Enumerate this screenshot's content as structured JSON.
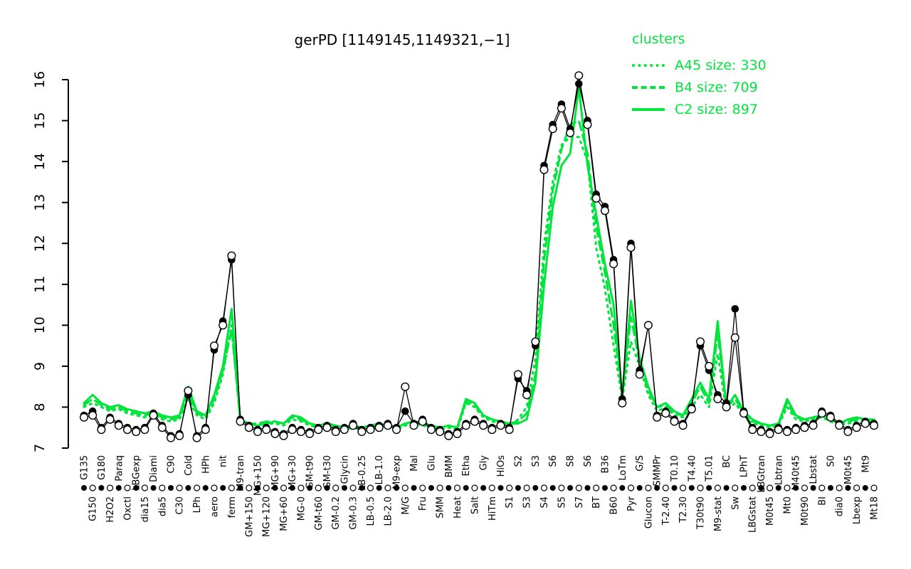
{
  "title": "gerPD [1149145,1149321,−1]",
  "legend": {
    "title": "clusters",
    "entries": [
      {
        "label": "A45 size: 330",
        "style": "dotted"
      },
      {
        "label": "B4 size: 709",
        "style": "dashed"
      },
      {
        "label": "C2 size: 897",
        "style": "solid"
      }
    ]
  },
  "colors": {
    "cluster_green": "#00e53c",
    "profile_black": "#000000",
    "background": "#ffffff"
  },
  "chart_data": {
    "type": "line",
    "title": "gerPD [1149145,1149321,−1]",
    "xlabel": "",
    "ylabel": "",
    "ylim": [
      7,
      16
    ],
    "yticks": [
      7,
      8,
      9,
      10,
      11,
      12,
      13,
      14,
      15,
      16
    ],
    "grid": false,
    "legend_position": "top-right",
    "categories": [
      "G135",
      "G150",
      "G180",
      "H2O2",
      "Paraq",
      "Oxctl",
      "LBGexp",
      "dia15",
      "Diami",
      "dia5",
      "C90",
      "C30",
      "Cold",
      "LPh",
      "HPh",
      "aero",
      "nit",
      "ferm",
      "M9-tran",
      "GM+150",
      "MG+150",
      "MG+120",
      "MG+90",
      "MG+60",
      "MG+30",
      "MG-0",
      "GM-t90",
      "GM-t60",
      "GM-t30",
      "GM-0.2",
      "Glycin",
      "GM-0.3",
      "LB-0.25",
      "LB-0.5",
      "LB-1.0",
      "LB-2.0",
      "M9-exp",
      "M/G",
      "Mal",
      "Fru",
      "Glu",
      "SMM",
      "BMM",
      "Heat",
      "Etha",
      "Salt",
      "Gly",
      "HiTm",
      "HiOs",
      "S1",
      "S2",
      "S3",
      "S3",
      "S4",
      "S6",
      "S5",
      "S8",
      "S7",
      "S6",
      "BT",
      "B36",
      "B60",
      "LoTm",
      "Pyr",
      "G/S",
      "Glucon",
      "SMMPr",
      "T-2.40",
      "T0.10",
      "T2.30",
      "T4.40",
      "T30t90",
      "T5.01",
      "M9-stat",
      "BC",
      "Sw",
      "LPhT",
      "LBGstat",
      "LBGtran",
      "M0t45",
      "Lbtran",
      "Mt0",
      "M40t45",
      "M0t90",
      "Lbstat",
      "BI",
      "S0",
      "dia0",
      "M0t45",
      "Lbexp",
      "Mt9",
      "Mt18"
    ],
    "series": [
      {
        "name": "A45 size: 330",
        "color": "#00e53c",
        "dash": "dotted",
        "values": [
          8.0,
          8.1,
          8.0,
          7.9,
          7.95,
          7.85,
          7.8,
          7.75,
          7.8,
          7.7,
          7.65,
          7.7,
          8.2,
          7.8,
          7.7,
          8.1,
          8.8,
          10.0,
          7.65,
          7.6,
          7.55,
          7.6,
          7.6,
          7.55,
          7.7,
          7.65,
          7.55,
          7.5,
          7.55,
          7.5,
          7.45,
          7.5,
          7.45,
          7.5,
          7.55,
          7.5,
          7.45,
          7.55,
          7.6,
          7.55,
          7.5,
          7.45,
          7.5,
          7.45,
          8.1,
          8.0,
          7.75,
          7.65,
          7.6,
          7.55,
          7.7,
          8.0,
          9.2,
          12.0,
          13.5,
          14.4,
          14.6,
          14.6,
          14.0,
          11.9,
          10.9,
          9.5,
          8.2,
          9.6,
          9.0,
          8.3,
          7.9,
          8.0,
          7.8,
          7.75,
          8.0,
          8.3,
          8.0,
          9.3,
          7.9,
          8.1,
          7.8,
          7.6,
          7.55,
          7.5,
          7.55,
          8.0,
          7.7,
          7.65,
          7.7,
          7.75,
          7.65,
          7.55,
          7.6,
          7.65,
          7.6,
          7.6
        ]
      },
      {
        "name": "B4 size: 709",
        "color": "#00e53c",
        "dash": "dashed",
        "values": [
          8.05,
          8.2,
          8.05,
          7.95,
          8.0,
          7.9,
          7.85,
          7.8,
          7.85,
          7.75,
          7.7,
          7.75,
          8.35,
          7.85,
          7.75,
          8.2,
          8.9,
          9.9,
          7.7,
          7.6,
          7.6,
          7.65,
          7.65,
          7.6,
          7.75,
          7.7,
          7.6,
          7.55,
          7.6,
          7.55,
          7.5,
          7.55,
          7.5,
          7.55,
          7.6,
          7.55,
          7.5,
          7.6,
          7.65,
          7.6,
          7.55,
          7.5,
          7.55,
          7.5,
          8.15,
          8.05,
          7.8,
          7.7,
          7.65,
          7.6,
          7.65,
          7.85,
          8.8,
          11.6,
          13.3,
          14.3,
          14.9,
          15.0,
          14.2,
          12.4,
          11.3,
          10.0,
          8.3,
          10.2,
          9.1,
          8.4,
          8.0,
          8.05,
          7.85,
          7.8,
          8.1,
          8.5,
          8.1,
          9.8,
          8.0,
          8.2,
          7.85,
          7.65,
          7.6,
          7.55,
          7.6,
          8.1,
          7.75,
          7.7,
          7.75,
          7.8,
          7.7,
          7.6,
          7.65,
          7.7,
          7.65,
          7.65
        ]
      },
      {
        "name": "C2 size: 897",
        "color": "#00e53c",
        "dash": "solid",
        "values": [
          8.1,
          8.3,
          8.1,
          8.0,
          8.05,
          7.95,
          7.9,
          7.85,
          7.9,
          7.8,
          7.75,
          7.8,
          8.5,
          7.9,
          7.8,
          8.3,
          9.0,
          10.4,
          7.7,
          7.6,
          7.55,
          7.6,
          7.65,
          7.6,
          7.8,
          7.75,
          7.6,
          7.55,
          7.6,
          7.55,
          7.5,
          7.55,
          7.5,
          7.55,
          7.6,
          7.55,
          7.5,
          7.6,
          7.65,
          7.6,
          7.55,
          7.5,
          7.55,
          7.5,
          8.2,
          8.1,
          7.8,
          7.7,
          7.65,
          7.6,
          7.6,
          7.7,
          8.6,
          11.0,
          12.9,
          13.9,
          14.2,
          15.8,
          13.9,
          12.7,
          11.5,
          10.5,
          8.3,
          10.6,
          9.2,
          8.5,
          8.0,
          8.1,
          7.9,
          7.8,
          8.2,
          8.6,
          8.2,
          10.1,
          8.0,
          8.3,
          7.9,
          7.7,
          7.6,
          7.55,
          7.6,
          8.2,
          7.8,
          7.7,
          7.75,
          7.8,
          7.7,
          7.6,
          7.7,
          7.75,
          7.7,
          7.7
        ]
      },
      {
        "name": "gene 1149145",
        "color": "#000000",
        "dash": "solid",
        "marker": "filled",
        "values": [
          7.8,
          7.9,
          7.5,
          7.75,
          7.6,
          7.5,
          7.45,
          7.5,
          7.85,
          7.55,
          7.3,
          7.35,
          8.3,
          7.3,
          7.5,
          9.4,
          10.1,
          11.6,
          7.7,
          7.55,
          7.45,
          7.5,
          7.4,
          7.35,
          7.5,
          7.45,
          7.4,
          7.5,
          7.55,
          7.45,
          7.5,
          7.6,
          7.45,
          7.5,
          7.55,
          7.6,
          7.5,
          7.9,
          7.6,
          7.7,
          7.5,
          7.45,
          7.35,
          7.4,
          7.6,
          7.7,
          7.6,
          7.5,
          7.6,
          7.5,
          8.7,
          8.4,
          9.5,
          13.9,
          14.9,
          15.4,
          14.8,
          15.9,
          15.0,
          13.2,
          12.9,
          11.6,
          8.2,
          12.0,
          8.9,
          10.0,
          7.8,
          7.9,
          7.7,
          7.6,
          8.0,
          9.5,
          8.9,
          8.3,
          8.1,
          10.4,
          7.9,
          7.5,
          7.45,
          7.4,
          7.5,
          7.45,
          7.5,
          7.55,
          7.6,
          7.9,
          7.8,
          7.6,
          7.45,
          7.55,
          7.65,
          7.6
        ]
      },
      {
        "name": "gene 1149321",
        "color": "#000000",
        "dash": "solid",
        "marker": "open",
        "values": [
          7.75,
          7.8,
          7.45,
          7.7,
          7.55,
          7.45,
          7.4,
          7.45,
          7.8,
          7.5,
          7.25,
          7.3,
          8.4,
          7.25,
          7.45,
          9.5,
          10.0,
          11.7,
          7.65,
          7.5,
          7.4,
          7.45,
          7.35,
          7.3,
          7.45,
          7.4,
          7.35,
          7.45,
          7.5,
          7.4,
          7.45,
          7.55,
          7.4,
          7.45,
          7.5,
          7.55,
          7.45,
          8.5,
          7.55,
          7.65,
          7.45,
          7.4,
          7.3,
          7.35,
          7.55,
          7.65,
          7.55,
          7.45,
          7.55,
          7.45,
          8.8,
          8.3,
          9.6,
          13.8,
          14.8,
          15.3,
          14.7,
          16.1,
          14.9,
          13.1,
          12.8,
          11.5,
          8.1,
          11.9,
          8.8,
          10.0,
          7.75,
          7.85,
          7.65,
          7.55,
          7.95,
          9.6,
          9.0,
          8.2,
          8.0,
          9.7,
          7.85,
          7.45,
          7.4,
          7.35,
          7.45,
          7.4,
          7.45,
          7.5,
          7.55,
          7.85,
          7.75,
          7.55,
          7.4,
          7.5,
          7.6,
          7.55
        ]
      }
    ]
  }
}
